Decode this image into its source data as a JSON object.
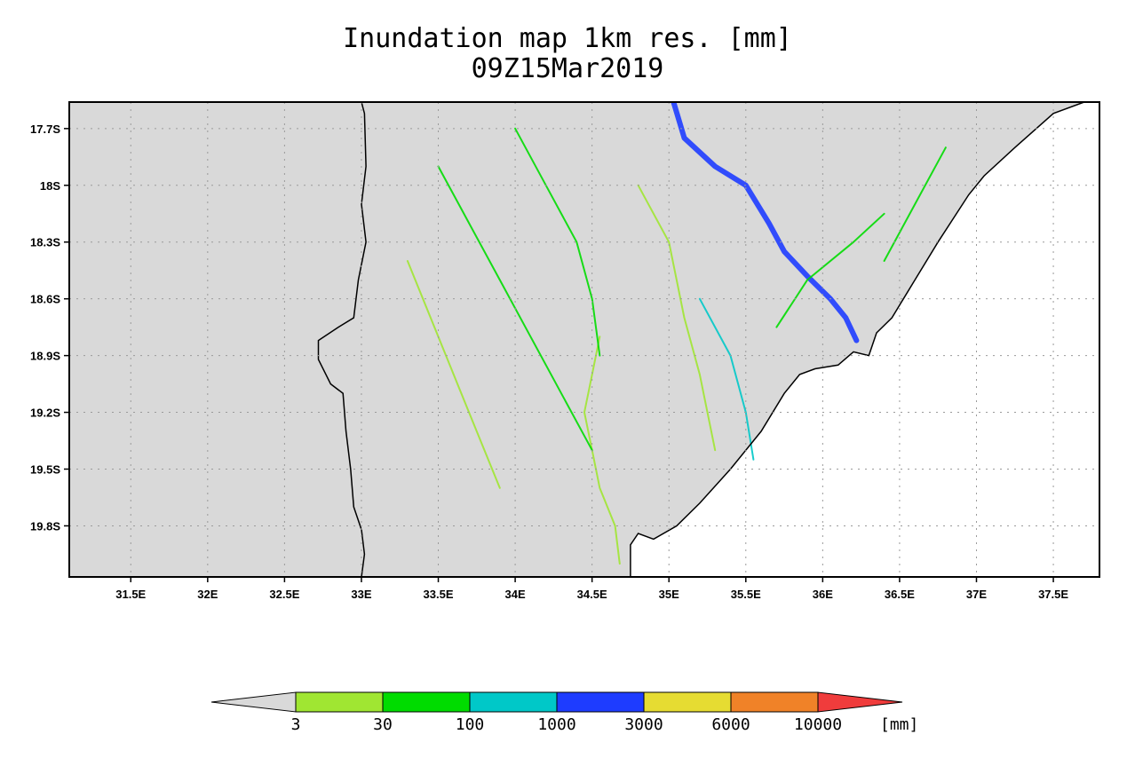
{
  "title": {
    "line1": "Inundation map 1km res. [mm]",
    "line2": "09Z15Mar2019"
  },
  "map": {
    "type": "gridded-raster-map",
    "background_land_color": "#d9d9d9",
    "ocean_color": "#ffffff",
    "grid": true,
    "lon_range": [
      31.1,
      37.8
    ],
    "lat_range": [
      -20.07,
      -17.56
    ],
    "lon_ticks": [
      {
        "value": 31.5,
        "label": "31.5E"
      },
      {
        "value": 32.0,
        "label": "32E"
      },
      {
        "value": 32.5,
        "label": "32.5E"
      },
      {
        "value": 33.0,
        "label": "33E"
      },
      {
        "value": 33.5,
        "label": "33.5E"
      },
      {
        "value": 34.0,
        "label": "34E"
      },
      {
        "value": 34.5,
        "label": "34.5E"
      },
      {
        "value": 35.0,
        "label": "35E"
      },
      {
        "value": 35.5,
        "label": "35.5E"
      },
      {
        "value": 36.0,
        "label": "36E"
      },
      {
        "value": 36.5,
        "label": "36.5E"
      },
      {
        "value": 37.0,
        "label": "37E"
      },
      {
        "value": 37.5,
        "label": "37.5E"
      }
    ],
    "lat_ticks": [
      {
        "value": -17.7,
        "label": "17.7S"
      },
      {
        "value": -18.0,
        "label": "18S"
      },
      {
        "value": -18.3,
        "label": "18.3S"
      },
      {
        "value": -18.6,
        "label": "18.6S"
      },
      {
        "value": -18.9,
        "label": "18.9S"
      },
      {
        "value": -19.2,
        "label": "19.2S"
      },
      {
        "value": -19.5,
        "label": "19.5S"
      },
      {
        "value": -19.8,
        "label": "19.8S"
      }
    ],
    "border_path": [
      [
        33.0,
        -17.56
      ],
      [
        33.02,
        -17.62
      ],
      [
        33.03,
        -17.9
      ],
      [
        33.0,
        -18.1
      ],
      [
        33.03,
        -18.3
      ],
      [
        32.98,
        -18.5
      ],
      [
        32.95,
        -18.7
      ],
      [
        32.85,
        -18.75
      ],
      [
        32.72,
        -18.82
      ],
      [
        32.72,
        -18.92
      ],
      [
        32.8,
        -19.05
      ],
      [
        32.88,
        -19.1
      ],
      [
        32.9,
        -19.3
      ],
      [
        32.93,
        -19.5
      ],
      [
        32.95,
        -19.7
      ],
      [
        33.0,
        -19.82
      ],
      [
        33.02,
        -19.95
      ],
      [
        33.0,
        -20.07
      ]
    ],
    "coast_path": [
      [
        37.7,
        -17.56
      ],
      [
        37.5,
        -17.62
      ],
      [
        37.25,
        -17.8
      ],
      [
        37.05,
        -17.95
      ],
      [
        36.95,
        -18.05
      ],
      [
        36.75,
        -18.3
      ],
      [
        36.6,
        -18.5
      ],
      [
        36.45,
        -18.7
      ],
      [
        36.35,
        -18.78
      ],
      [
        36.3,
        -18.9
      ],
      [
        36.2,
        -18.88
      ],
      [
        36.1,
        -18.95
      ],
      [
        35.95,
        -18.97
      ],
      [
        35.85,
        -19.0
      ],
      [
        35.75,
        -19.1
      ],
      [
        35.6,
        -19.3
      ],
      [
        35.4,
        -19.5
      ],
      [
        35.2,
        -19.68
      ],
      [
        35.05,
        -19.8
      ],
      [
        34.9,
        -19.87
      ],
      [
        34.8,
        -19.84
      ],
      [
        34.75,
        -19.9
      ],
      [
        34.75,
        -20.07
      ]
    ],
    "river_paths": [
      {
        "level": 4,
        "points": [
          [
            35.03,
            -17.56
          ],
          [
            35.1,
            -17.75
          ],
          [
            35.3,
            -17.9
          ],
          [
            35.5,
            -18.0
          ],
          [
            35.65,
            -18.2
          ],
          [
            35.75,
            -18.35
          ],
          [
            35.9,
            -18.48
          ],
          [
            36.05,
            -18.6
          ],
          [
            36.15,
            -18.7
          ],
          [
            36.22,
            -18.82
          ]
        ]
      },
      {
        "level": 1,
        "points": [
          [
            34.55,
            -18.8
          ],
          [
            34.5,
            -19.0
          ],
          [
            34.45,
            -19.2
          ],
          [
            34.5,
            -19.4
          ],
          [
            34.55,
            -19.6
          ],
          [
            34.65,
            -19.8
          ],
          [
            34.68,
            -20.0
          ]
        ]
      },
      {
        "level": 2,
        "points": [
          [
            33.5,
            -17.9
          ],
          [
            33.7,
            -18.2
          ],
          [
            33.9,
            -18.5
          ],
          [
            34.1,
            -18.8
          ],
          [
            34.3,
            -19.1
          ],
          [
            34.5,
            -19.4
          ]
        ]
      },
      {
        "level": 2,
        "points": [
          [
            34.0,
            -17.7
          ],
          [
            34.2,
            -18.0
          ],
          [
            34.4,
            -18.3
          ],
          [
            34.5,
            -18.6
          ],
          [
            34.55,
            -18.9
          ]
        ]
      },
      {
        "level": 3,
        "points": [
          [
            35.2,
            -18.6
          ],
          [
            35.4,
            -18.9
          ],
          [
            35.5,
            -19.2
          ],
          [
            35.55,
            -19.45
          ]
        ]
      },
      {
        "level": 2,
        "points": [
          [
            36.4,
            -18.15
          ],
          [
            36.2,
            -18.3
          ],
          [
            35.9,
            -18.5
          ],
          [
            35.7,
            -18.75
          ]
        ]
      },
      {
        "level": 1,
        "points": [
          [
            33.3,
            -18.4
          ],
          [
            33.5,
            -18.8
          ],
          [
            33.7,
            -19.2
          ],
          [
            33.9,
            -19.6
          ]
        ]
      },
      {
        "level": 1,
        "points": [
          [
            34.8,
            -18.0
          ],
          [
            35.0,
            -18.3
          ],
          [
            35.1,
            -18.7
          ],
          [
            35.2,
            -19.0
          ],
          [
            35.3,
            -19.4
          ]
        ]
      },
      {
        "level": 2,
        "points": [
          [
            36.8,
            -17.8
          ],
          [
            36.6,
            -18.1
          ],
          [
            36.4,
            -18.4
          ]
        ]
      }
    ]
  },
  "colorbar": {
    "unit": "[mm]",
    "underflow_color": "#d9d9d9",
    "overflow_color": "#f03c3c",
    "levels": [
      "3",
      "30",
      "100",
      "1000",
      "3000",
      "6000",
      "10000"
    ],
    "colors": [
      "#a0e632",
      "#00dc00",
      "#00c8c8",
      "#1e3cff",
      "#e6dc32",
      "#f08228"
    ]
  }
}
